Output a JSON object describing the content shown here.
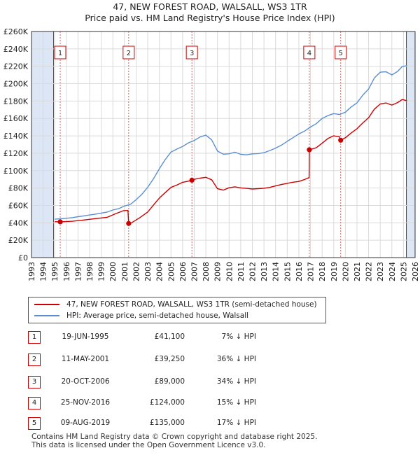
{
  "title": "47, NEW FOREST ROAD, WALSALL, WS3 1TR",
  "subtitle": "Price paid vs. HM Land Registry's House Price Index (HPI)",
  "colors": {
    "property": "#cc0000",
    "hpi": "#5b8fd0",
    "shade": "#dde6f4"
  },
  "chart_data": {
    "type": "line",
    "title": "47, NEW FOREST ROAD, WALSALL, WS3 1TR",
    "subtitle": "Price paid vs. HM Land Registry's House Price Index (HPI)",
    "xlim": [
      1993,
      2026
    ],
    "ylim": [
      0,
      260000
    ],
    "x_ticks": [
      "1993",
      "1994",
      "1995",
      "1996",
      "1997",
      "1998",
      "1999",
      "2000",
      "2001",
      "2002",
      "2003",
      "2004",
      "2005",
      "2006",
      "2007",
      "2008",
      "2009",
      "2010",
      "2011",
      "2012",
      "2013",
      "2014",
      "2015",
      "2016",
      "2017",
      "2018",
      "2019",
      "2020",
      "2021",
      "2022",
      "2023",
      "2024",
      "2025",
      "2026"
    ],
    "y_ticks": [
      "£0",
      "£20K",
      "£40K",
      "£60K",
      "£80K",
      "£100K",
      "£120K",
      "£140K",
      "£160K",
      "£180K",
      "£200K",
      "£220K",
      "£240K",
      "£260K"
    ],
    "series": [
      {
        "name": "47, NEW FOREST ROAD, WALSALL, WS3 1TR (semi-detached house)",
        "points": [
          [
            1995.0,
            41300
          ],
          [
            1995.47,
            41100
          ],
          [
            1996.5,
            41800
          ],
          [
            1997.5,
            43200
          ],
          [
            1998.5,
            44800
          ],
          [
            1999.5,
            46300
          ],
          [
            2000.3,
            50800
          ],
          [
            2000.9,
            53900
          ],
          [
            2001.3,
            54200
          ],
          [
            2001.36,
            39250
          ],
          [
            2001.6,
            40000
          ],
          [
            2002.3,
            45700
          ],
          [
            2003.0,
            52500
          ],
          [
            2003.5,
            60600
          ],
          [
            2004.0,
            68500
          ],
          [
            2004.5,
            74700
          ],
          [
            2005.0,
            80700
          ],
          [
            2005.5,
            83400
          ],
          [
            2006.0,
            86600
          ],
          [
            2006.5,
            87900
          ],
          [
            2006.8,
            89000
          ],
          [
            2007.0,
            90000
          ],
          [
            2007.5,
            91400
          ],
          [
            2008.0,
            92300
          ],
          [
            2008.5,
            89500
          ],
          [
            2009.0,
            79200
          ],
          [
            2009.5,
            77600
          ],
          [
            2010.0,
            80300
          ],
          [
            2010.5,
            81400
          ],
          [
            2011.0,
            80200
          ],
          [
            2011.5,
            79600
          ],
          [
            2012.0,
            78900
          ],
          [
            2012.5,
            79300
          ],
          [
            2013.0,
            79800
          ],
          [
            2013.5,
            80700
          ],
          [
            2014.0,
            82400
          ],
          [
            2014.5,
            84000
          ],
          [
            2015.0,
            85400
          ],
          [
            2015.5,
            86700
          ],
          [
            2016.0,
            87600
          ],
          [
            2016.5,
            89800
          ],
          [
            2016.88,
            92000
          ],
          [
            2016.9,
            124000
          ],
          [
            2017.5,
            126300
          ],
          [
            2018.0,
            131500
          ],
          [
            2018.5,
            137000
          ],
          [
            2019.0,
            140100
          ],
          [
            2019.5,
            138800
          ],
          [
            2019.6,
            135000
          ],
          [
            2020.0,
            137800
          ],
          [
            2020.5,
            143400
          ],
          [
            2021.0,
            148200
          ],
          [
            2021.5,
            154900
          ],
          [
            2022.0,
            160900
          ],
          [
            2022.5,
            170800
          ],
          [
            2023.0,
            176600
          ],
          [
            2023.5,
            177800
          ],
          [
            2024.0,
            175400
          ],
          [
            2024.5,
            178300
          ],
          [
            2024.9,
            181800
          ],
          [
            2025.3,
            180200
          ]
        ]
      },
      {
        "name": "HPI: Average price, semi-detached house, Walsall",
        "points": [
          [
            1995.0,
            44200
          ],
          [
            1995.5,
            44600
          ],
          [
            1996.0,
            45200
          ],
          [
            1996.5,
            45900
          ],
          [
            1997.0,
            47000
          ],
          [
            1997.5,
            48000
          ],
          [
            1998.0,
            49000
          ],
          [
            1998.5,
            50000
          ],
          [
            1999.0,
            51200
          ],
          [
            1999.5,
            52300
          ],
          [
            2000.0,
            54700
          ],
          [
            2000.5,
            56300
          ],
          [
            2001.0,
            59300
          ],
          [
            2001.5,
            61200
          ],
          [
            2002.0,
            66600
          ],
          [
            2002.5,
            72900
          ],
          [
            2003.0,
            81000
          ],
          [
            2003.5,
            90800
          ],
          [
            2004.0,
            102200
          ],
          [
            2004.5,
            112700
          ],
          [
            2005.0,
            121400
          ],
          [
            2005.5,
            124800
          ],
          [
            2006.0,
            127800
          ],
          [
            2006.5,
            131900
          ],
          [
            2007.0,
            134700
          ],
          [
            2007.5,
            138700
          ],
          [
            2008.0,
            140800
          ],
          [
            2008.5,
            135400
          ],
          [
            2009.0,
            122500
          ],
          [
            2009.5,
            118900
          ],
          [
            2010.0,
            119400
          ],
          [
            2010.5,
            121200
          ],
          [
            2011.0,
            118700
          ],
          [
            2011.5,
            118200
          ],
          [
            2012.0,
            119300
          ],
          [
            2012.5,
            119600
          ],
          [
            2013.0,
            120700
          ],
          [
            2013.5,
            123100
          ],
          [
            2014.0,
            125900
          ],
          [
            2014.5,
            129300
          ],
          [
            2015.0,
            133700
          ],
          [
            2015.5,
            137900
          ],
          [
            2016.0,
            142200
          ],
          [
            2016.5,
            145500
          ],
          [
            2017.0,
            150100
          ],
          [
            2017.5,
            154000
          ],
          [
            2018.0,
            160000
          ],
          [
            2018.5,
            163300
          ],
          [
            2019.0,
            165600
          ],
          [
            2019.5,
            164500
          ],
          [
            2020.0,
            167200
          ],
          [
            2020.5,
            173200
          ],
          [
            2021.0,
            178000
          ],
          [
            2021.5,
            186800
          ],
          [
            2022.0,
            193900
          ],
          [
            2022.5,
            206700
          ],
          [
            2023.0,
            213200
          ],
          [
            2023.5,
            213700
          ],
          [
            2024.0,
            210100
          ],
          [
            2024.5,
            214100
          ],
          [
            2024.9,
            219800
          ],
          [
            2025.3,
            220700
          ]
        ]
      }
    ],
    "sales": [
      {
        "label": "1",
        "x": 1995.47,
        "y": 41100
      },
      {
        "label": "2",
        "x": 2001.36,
        "y": 39250
      },
      {
        "label": "3",
        "x": 2006.8,
        "y": 89000
      },
      {
        "label": "4",
        "x": 2016.9,
        "y": 124000
      },
      {
        "label": "5",
        "x": 2019.6,
        "y": 135000
      }
    ],
    "shaded_ranges": [
      [
        1993,
        1994.9
      ],
      [
        2025.25,
        2026
      ]
    ],
    "grid": true
  },
  "legend": {
    "property": "47, NEW FOREST ROAD, WALSALL, WS3 1TR (semi-detached house)",
    "hpi": "HPI: Average price, semi-detached house, Walsall"
  },
  "sales_table": [
    {
      "num": "1",
      "date": "19-JUN-1995",
      "price": "£41,100",
      "hpi": "7% ↓ HPI"
    },
    {
      "num": "2",
      "date": "11-MAY-2001",
      "price": "£39,250",
      "hpi": "36% ↓ HPI"
    },
    {
      "num": "3",
      "date": "20-OCT-2006",
      "price": "£89,000",
      "hpi": "34% ↓ HPI"
    },
    {
      "num": "4",
      "date": "25-NOV-2016",
      "price": "£124,000",
      "hpi": "15% ↓ HPI"
    },
    {
      "num": "5",
      "date": "09-AUG-2019",
      "price": "£135,000",
      "hpi": "17% ↓ HPI"
    }
  ],
  "footer": {
    "line1": "Contains HM Land Registry data © Crown copyright and database right 2025.",
    "line2": "This data is licensed under the Open Government Licence v3.0."
  }
}
